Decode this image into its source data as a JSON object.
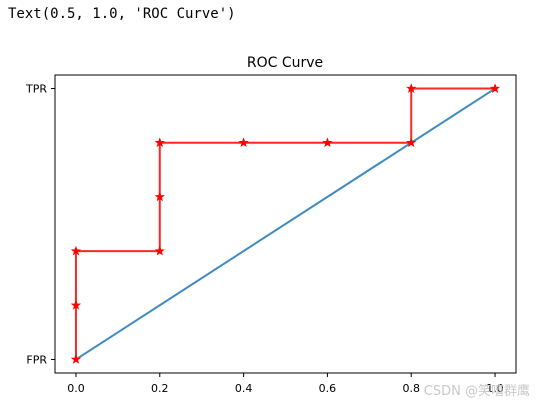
{
  "output_text": "Text(0.5, 1.0, 'ROC Curve')",
  "watermark": "CSDN @笑嘻群鹰",
  "chart_data": {
    "type": "line",
    "title": "ROC Curve",
    "xlabel": "",
    "ylabel": "",
    "xlim": [
      -0.05,
      1.05
    ],
    "ylim": [
      -0.05,
      1.05
    ],
    "x_ticks": [
      0.0,
      0.2,
      0.4,
      0.6,
      0.8,
      1.0
    ],
    "x_tick_labels": [
      "0.0",
      "0.2",
      "0.4",
      "0.6",
      "0.8",
      "1.0"
    ],
    "y_ticks": [
      0.0,
      1.0
    ],
    "y_tick_labels": [
      "FPR",
      "TPR"
    ],
    "grid": false,
    "series": [
      {
        "color": "#1f77b4",
        "marker": "none",
        "x": [
          0.0,
          1.0
        ],
        "y": [
          0.0,
          1.0
        ]
      },
      {
        "color": "#ff0000",
        "marker": "star",
        "x": [
          0.0,
          0.0,
          0.0,
          0.2,
          0.2,
          0.2,
          0.4,
          0.6,
          0.8,
          0.8,
          1.0
        ],
        "y": [
          0.0,
          0.2,
          0.4,
          0.4,
          0.6,
          0.8,
          0.8,
          0.8,
          0.8,
          1.0,
          1.0
        ]
      }
    ]
  }
}
